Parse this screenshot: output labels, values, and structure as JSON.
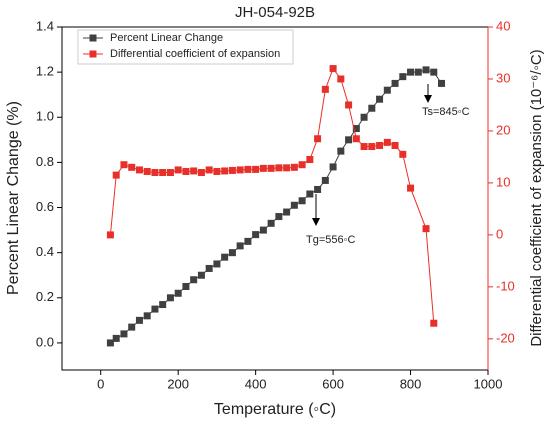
{
  "chart_data": {
    "type": "line",
    "title": "JH-054-92B",
    "x_label": "Temperature (◦C)",
    "y_label": "Percent Linear Change (%)",
    "y2_label": "Differential coefficient of expansion (10⁻⁶/◦C)",
    "xlim": [
      -100,
      1000
    ],
    "xticks": [
      0,
      200,
      400,
      600,
      800,
      1000
    ],
    "ylim": [
      -0.12,
      1.4
    ],
    "yticks": [
      {
        "value": 0,
        "label": "0.0"
      },
      0.2,
      0.4,
      0.6,
      0.8,
      {
        "value": 1,
        "label": "1.0"
      },
      1.2,
      1.4
    ],
    "y2lim": [
      -26,
      40
    ],
    "y2ticks": [
      -20,
      -10,
      0,
      10,
      20,
      30,
      40
    ],
    "legend": "upper left",
    "series": [
      {
        "name": "Percent Linear Change",
        "color": "#404040",
        "x": [
          25,
          40,
          60,
          80,
          100,
          120,
          140,
          160,
          180,
          200,
          220,
          240,
          260,
          280,
          300,
          320,
          340,
          360,
          380,
          400,
          420,
          440,
          460,
          480,
          500,
          520,
          540,
          560,
          580,
          600,
          620,
          640,
          660,
          680,
          700,
          720,
          740,
          760,
          780,
          800,
          820,
          840,
          860,
          880
        ],
        "values": [
          0.0,
          0.02,
          0.04,
          0.07,
          0.1,
          0.12,
          0.15,
          0.17,
          0.2,
          0.22,
          0.25,
          0.28,
          0.3,
          0.33,
          0.35,
          0.38,
          0.4,
          0.43,
          0.45,
          0.48,
          0.5,
          0.53,
          0.56,
          0.58,
          0.61,
          0.63,
          0.66,
          0.68,
          0.72,
          0.78,
          0.85,
          0.9,
          0.95,
          1.0,
          1.04,
          1.08,
          1.12,
          1.15,
          1.18,
          1.2,
          1.2,
          1.21,
          1.2,
          1.15
        ]
      },
      {
        "name": "Differential coefficient of expansion",
        "color": "#e8302a",
        "axis": "y2",
        "x": [
          25,
          40,
          60,
          80,
          100,
          120,
          140,
          160,
          180,
          200,
          220,
          240,
          260,
          280,
          300,
          320,
          340,
          360,
          380,
          400,
          420,
          440,
          460,
          480,
          500,
          520,
          540,
          560,
          580,
          600,
          620,
          640,
          660,
          680,
          700,
          720,
          740,
          760,
          780,
          800,
          840,
          860
        ],
        "values": [
          0,
          11.5,
          13.5,
          13,
          12.5,
          12.2,
          12,
          12,
          12,
          12.5,
          12.2,
          12.3,
          12,
          12.5,
          12.2,
          12.3,
          12.4,
          12.5,
          12.6,
          12.6,
          12.8,
          12.8,
          12.9,
          12.9,
          13,
          13.5,
          14.5,
          18.5,
          28,
          32,
          30,
          25,
          18.5,
          17,
          17,
          17.2,
          17.8,
          17.2,
          15.5,
          9,
          1.2,
          -17
        ]
      }
    ],
    "annotations": [
      "Ts=845◦C",
      "Tg=556◦C"
    ]
  }
}
